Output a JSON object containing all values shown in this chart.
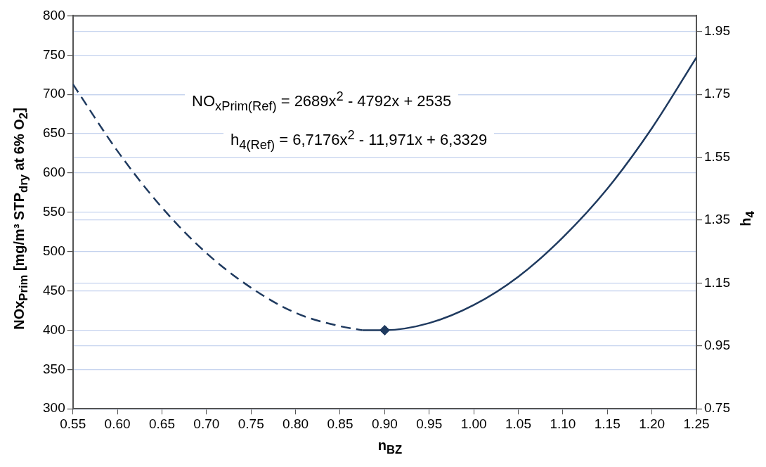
{
  "chart_data": {
    "type": "line",
    "xlabel": "n$_{BZ}$",
    "ylabel": "NOx$_{Prim}$  [mg/m³ STP$_{dry}$ at 6% O$_{2}$]",
    "y2label": "h$_{4}$",
    "annotations": [
      "NO$_{xPrim(Ref)}$ = 2689x$^{2}$ - 4792x + 2535",
      "h$_{4(Ref)}$ = 6,7176x$^{2}$ - 11,971x + 6,3329"
    ],
    "xlim": [
      0.55,
      1.25
    ],
    "xticks": [
      0.55,
      {
        "value": 0.6,
        "label": "0.60"
      },
      0.65,
      {
        "value": 0.7,
        "label": "0.70"
      },
      0.75,
      {
        "value": 0.8,
        "label": "0.80"
      },
      0.85,
      {
        "value": 0.9,
        "label": "0.90"
      },
      0.95,
      {
        "value": 1.0,
        "label": "1.00"
      },
      1.05,
      {
        "value": 1.1,
        "label": "1.10"
      },
      1.15,
      {
        "value": 1.2,
        "label": "1.20"
      },
      1.25
    ],
    "ylim": [
      300,
      800
    ],
    "yticks": [
      300,
      350,
      400,
      450,
      500,
      550,
      600,
      650,
      700,
      750,
      800
    ],
    "y2lim": [
      0.75,
      2.0
    ],
    "y2ticks": [
      0.75,
      0.95,
      1.15,
      1.35,
      1.55,
      1.75,
      1.95
    ],
    "grid": true,
    "legend": false,
    "series": [
      {
        "type": "line",
        "line_style": "dashed",
        "color": "#1f3a5f",
        "x": [
          0.55,
          0.6,
          0.65,
          0.7,
          0.75,
          0.8,
          0.85,
          0.875
        ],
        "values": [
          713,
          628,
          556,
          498,
          454,
          422,
          405,
          400
        ]
      },
      {
        "type": "line",
        "line_style": "solid",
        "color": "#1f3a5f",
        "x": [
          0.875,
          0.9,
          0.95,
          1.0,
          1.05,
          1.1,
          1.15,
          1.2,
          1.25
        ],
        "values": [
          400,
          400,
          409,
          432,
          468,
          518,
          580,
          657,
          747
        ]
      },
      {
        "type": "scatter",
        "marker": "diamond",
        "color": "#1f3a5f",
        "x": [
          0.9
        ],
        "values": [
          400
        ]
      }
    ]
  }
}
